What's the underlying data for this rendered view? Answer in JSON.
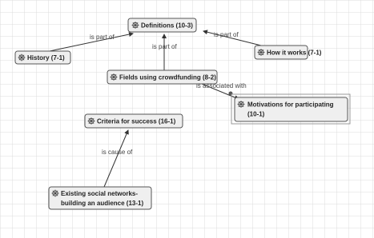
{
  "nodes": [
    {
      "lines": [
        "Definitions (10-3)"
      ]
    },
    {
      "lines": [
        "History (7-1)"
      ]
    },
    {
      "lines": [
        "How it works (7-1)"
      ]
    },
    {
      "lines": [
        "Fields using crowdfunding (8-2)"
      ]
    },
    {
      "lines": [
        "Motivations for participating",
        "(10-1)"
      ]
    },
    {
      "lines": [
        "Criteria for success (16-1)"
      ]
    },
    {
      "lines": [
        "Existing social networks-",
        "building an audience (13-1)"
      ]
    }
  ],
  "edges": [
    {
      "label": "is part of"
    },
    {
      "label": "is part of"
    },
    {
      "label": "is part of"
    },
    {
      "label": "is associated with"
    },
    {
      "label": "is cause of"
    }
  ]
}
